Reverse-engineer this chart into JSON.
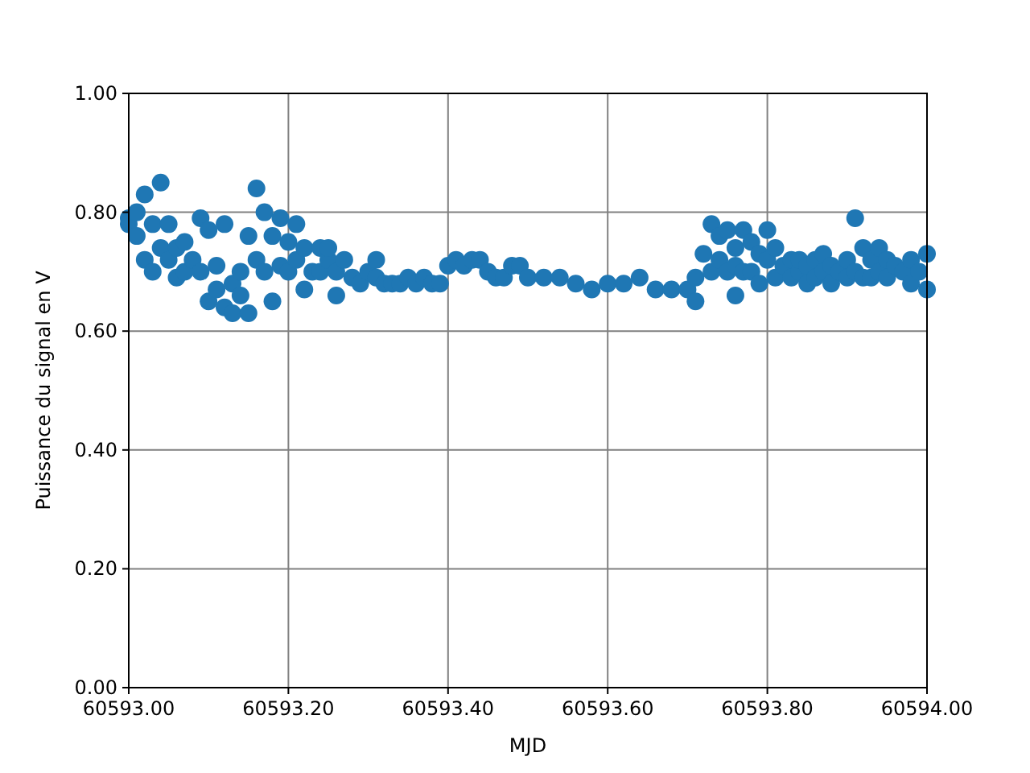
{
  "chart_data": {
    "type": "scatter",
    "xlabel": "MJD",
    "ylabel": "Puissance du signal en V",
    "x": [
      60593.0,
      60593.0,
      60593.01,
      60593.01,
      60593.02,
      60593.02,
      60593.03,
      60593.03,
      60593.04,
      60593.04,
      60593.05,
      60593.05,
      60593.06,
      60593.06,
      60593.07,
      60593.07,
      60593.08,
      60593.09,
      60593.09,
      60593.1,
      60593.1,
      60593.11,
      60593.11,
      60593.12,
      60593.12,
      60593.13,
      60593.13,
      60593.14,
      60593.14,
      60593.15,
      60593.15,
      60593.16,
      60593.16,
      60593.17,
      60593.17,
      60593.18,
      60593.18,
      60593.19,
      60593.19,
      60593.2,
      60593.2,
      60593.21,
      60593.21,
      60593.22,
      60593.22,
      60593.23,
      60593.24,
      60593.24,
      60593.25,
      60593.25,
      60593.26,
      60593.26,
      60593.27,
      60593.28,
      60593.29,
      60593.3,
      60593.31,
      60593.31,
      60593.32,
      60593.33,
      60593.34,
      60593.35,
      60593.36,
      60593.37,
      60593.38,
      60593.39,
      60593.4,
      60593.41,
      60593.42,
      60593.43,
      60593.44,
      60593.45,
      60593.46,
      60593.47,
      60593.48,
      60593.49,
      60593.5,
      60593.52,
      60593.54,
      60593.56,
      60593.58,
      60593.6,
      60593.62,
      60593.64,
      60593.66,
      60593.68,
      60593.7,
      60593.71,
      60593.71,
      60593.72,
      60593.73,
      60593.73,
      60593.74,
      60593.74,
      60593.75,
      60593.75,
      60593.76,
      60593.76,
      60593.76,
      60593.77,
      60593.77,
      60593.78,
      60593.78,
      60593.79,
      60593.79,
      60593.8,
      60593.8,
      60593.81,
      60593.81,
      60593.82,
      60593.83,
      60593.83,
      60593.84,
      60593.84,
      60593.85,
      60593.85,
      60593.86,
      60593.86,
      60593.87,
      60593.87,
      60593.88,
      60593.88,
      60593.89,
      60593.9,
      60593.9,
      60593.91,
      60593.91,
      60593.92,
      60593.92,
      60593.93,
      60593.93,
      60593.94,
      60593.94,
      60593.95,
      60593.95,
      60593.96,
      60593.97,
      60593.98,
      60593.98,
      60593.99,
      60594.0,
      60594.0
    ],
    "series": [
      {
        "color": "#1f77b4",
        "values": [
          0.79,
          0.78,
          0.76,
          0.8,
          0.83,
          0.72,
          0.7,
          0.78,
          0.85,
          0.74,
          0.72,
          0.78,
          0.69,
          0.74,
          0.75,
          0.7,
          0.72,
          0.79,
          0.7,
          0.65,
          0.77,
          0.67,
          0.71,
          0.78,
          0.64,
          0.68,
          0.63,
          0.66,
          0.7,
          0.63,
          0.76,
          0.84,
          0.72,
          0.8,
          0.7,
          0.65,
          0.76,
          0.71,
          0.79,
          0.75,
          0.7,
          0.78,
          0.72,
          0.67,
          0.74,
          0.7,
          0.74,
          0.7,
          0.72,
          0.74,
          0.66,
          0.7,
          0.72,
          0.69,
          0.68,
          0.7,
          0.72,
          0.69,
          0.68,
          0.68,
          0.68,
          0.69,
          0.68,
          0.69,
          0.68,
          0.68,
          0.71,
          0.72,
          0.71,
          0.72,
          0.72,
          0.7,
          0.69,
          0.69,
          0.71,
          0.71,
          0.69,
          0.69,
          0.69,
          0.68,
          0.67,
          0.68,
          0.68,
          0.69,
          0.67,
          0.67,
          0.67,
          0.65,
          0.69,
          0.73,
          0.78,
          0.7,
          0.76,
          0.72,
          0.77,
          0.7,
          0.74,
          0.66,
          0.71,
          0.77,
          0.7,
          0.7,
          0.75,
          0.73,
          0.68,
          0.77,
          0.72,
          0.69,
          0.74,
          0.71,
          0.72,
          0.69,
          0.7,
          0.72,
          0.68,
          0.71,
          0.72,
          0.69,
          0.73,
          0.7,
          0.68,
          0.71,
          0.7,
          0.72,
          0.69,
          0.79,
          0.7,
          0.74,
          0.69,
          0.72,
          0.69,
          0.74,
          0.7,
          0.72,
          0.69,
          0.71,
          0.7,
          0.72,
          0.68,
          0.7,
          0.73,
          0.67
        ]
      }
    ],
    "xlim": [
      60593,
      60594
    ],
    "xticks": [
      {
        "value": 60593,
        "label": "60593.00"
      },
      {
        "value": 60593.2,
        "label": "60593.20"
      },
      {
        "value": 60593.4,
        "label": "60593.40"
      },
      {
        "value": 60593.6,
        "label": "60593.60"
      },
      {
        "value": 60593.8,
        "label": "60593.80"
      },
      {
        "value": 60594,
        "label": "60594.00"
      }
    ],
    "ylim": [
      0,
      1
    ],
    "yticks": [
      {
        "value": 0,
        "label": "0.00"
      },
      {
        "value": 0.2,
        "label": "0.20"
      },
      {
        "value": 0.4,
        "label": "0.40"
      },
      {
        "value": 0.6,
        "label": "0.60"
      },
      {
        "value": 0.8,
        "label": "0.80"
      },
      {
        "value": 1,
        "label": "1.00"
      }
    ],
    "grid": true,
    "marker": "circle"
  }
}
